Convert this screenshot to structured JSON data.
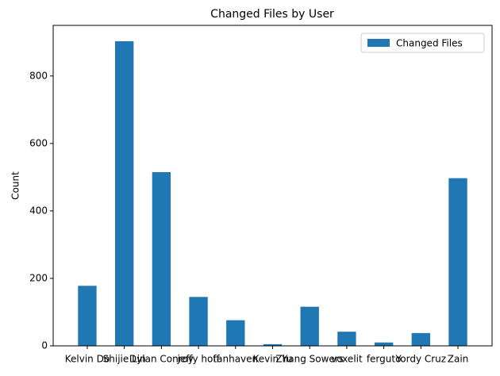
{
  "chart_data": {
    "type": "bar",
    "title": "Changed Files by User",
    "y_label": "Count",
    "categories": [
      "Kelvin Do",
      "Shijie Lin",
      "Dylan Conroy",
      "jeffy hoff",
      "tanhaven",
      "Kevin Yu",
      "Zhang Sowers",
      "voxelit",
      "ferguto",
      "Yordy Cruz",
      "Zain"
    ],
    "series": [
      {
        "name": "Changed Files",
        "color": "#1f77b4",
        "values": [
          178,
          903,
          515,
          145,
          76,
          5,
          116,
          42,
          10,
          38,
          497
        ]
      }
    ],
    "ylim": [
      0,
      950
    ],
    "yticks": [
      0,
      200,
      400,
      600,
      800
    ],
    "legend": "upper right"
  }
}
